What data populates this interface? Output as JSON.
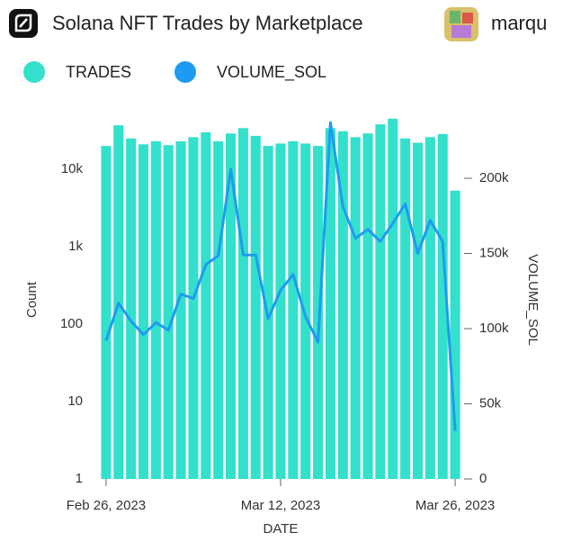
{
  "user": "marqu",
  "chart_data": {
    "type": "bar_line",
    "title": "Solana NFT Trades by Marketplace",
    "x_label": "DATE",
    "y_label": "Count",
    "y2_label": "VOLUME_SOL",
    "categories": [
      "Feb 26, 2023",
      null,
      null,
      null,
      null,
      null,
      null,
      null,
      null,
      null,
      null,
      null,
      null,
      null,
      "Mar 12, 2023",
      null,
      null,
      null,
      null,
      null,
      null,
      null,
      null,
      null,
      null,
      null,
      null,
      null,
      "Mar 26, 2023"
    ],
    "yscale": "log",
    "ylim": [
      1,
      100000
    ],
    "yticks": [
      1,
      10,
      100,
      {
        "value": 1000,
        "label": "1k"
      },
      {
        "value": 10000,
        "label": "10k"
      }
    ],
    "y2lim": [
      0,
      257500
    ],
    "y2ticks": [
      0,
      {
        "value": 50000,
        "label": "50k"
      },
      {
        "value": 100000,
        "label": "100k"
      },
      {
        "value": 150000,
        "label": "150k"
      },
      {
        "value": 200000,
        "label": "200k"
      }
    ],
    "legend": "top-left",
    "series": [
      {
        "name": "TRADES",
        "type": "bar",
        "color": "#33e0cc",
        "values": [
          20000,
          37000,
          25000,
          21000,
          23000,
          20500,
          23000,
          26000,
          30000,
          23000,
          29000,
          34000,
          27000,
          20000,
          21500,
          23000,
          21500,
          20000,
          34000,
          31000,
          26000,
          29000,
          38000,
          45000,
          25000,
          22000,
          26000,
          28500,
          5300
        ]
      },
      {
        "name": "VOLUME_SOL",
        "type": "line",
        "axis": "y2",
        "color": "#1e9bf0",
        "values": [
          92000,
          117000,
          105000,
          96000,
          104000,
          99000,
          123000,
          120000,
          142500,
          148500,
          206000,
          149000,
          149000,
          106500,
          125500,
          136000,
          108000,
          91000,
          237000,
          181000,
          160000,
          166000,
          158000,
          170000,
          183000,
          150000,
          172000,
          158000,
          32000
        ]
      }
    ]
  }
}
